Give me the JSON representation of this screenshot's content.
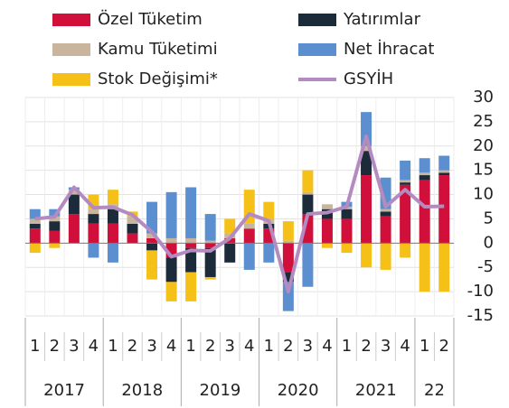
{
  "chart_data": {
    "type": "stacked_bar_line",
    "categories": [
      "1",
      "2",
      "3",
      "4",
      "1",
      "2",
      "3",
      "4",
      "1",
      "2",
      "3",
      "4",
      "1",
      "2",
      "3",
      "4",
      "1",
      "2",
      "3",
      "4",
      "1",
      "2"
    ],
    "category_groups": [
      "2017",
      "2018",
      "2019",
      "2020",
      "2021",
      "22"
    ],
    "series": [
      {
        "name": "Özel Tüketim",
        "color": "#d0103a",
        "values": [
          3,
          2.5,
          6,
          4,
          4,
          2,
          1,
          -3,
          -1,
          -1,
          1,
          3,
          3,
          -6,
          6,
          5,
          5,
          14,
          5.5,
          12,
          13,
          14
        ]
      },
      {
        "name": "Yatırımlar",
        "color": "#1c2b3a",
        "values": [
          1,
          2,
          4,
          2,
          3,
          2,
          -1.5,
          -5,
          -5,
          -6,
          -4,
          0,
          1,
          -2,
          4,
          2,
          2,
          5,
          1,
          0.5,
          1,
          0.5
        ]
      },
      {
        "name": "Kamu Tüketimi",
        "color": "#c9b59d",
        "values": [
          1,
          1,
          1,
          1,
          1,
          1.5,
          1,
          1,
          1,
          0.5,
          1,
          1,
          1,
          0.5,
          0.5,
          1,
          0.5,
          1,
          0.5,
          0.5,
          0.5,
          0.5
        ]
      },
      {
        "name": "Net İhracat",
        "color": "#5b8fd0",
        "values": [
          2,
          1.5,
          0.5,
          -3,
          -4,
          0,
          6.5,
          9.5,
          10.5,
          5.5,
          0,
          -5.5,
          -4,
          -6,
          -9,
          0,
          1,
          7,
          6.5,
          4,
          3,
          3
        ]
      },
      {
        "name": "Stok Değişimi*",
        "color": "#f5c018",
        "values": [
          -2,
          -1,
          0,
          3,
          3,
          1,
          -6,
          -4,
          -6,
          -0.5,
          3,
          7,
          3.5,
          4,
          4.5,
          -1,
          -2,
          -5,
          -5.5,
          -3,
          -10,
          -10
        ]
      },
      {
        "name": "GSYİH",
        "color": "#b48bc0",
        "type": "line",
        "values": [
          5,
          5.4,
          11.5,
          7.3,
          7.4,
          5.8,
          2.3,
          -2.8,
          -1.5,
          -1.6,
          1,
          6,
          4.6,
          -10,
          6,
          6.3,
          7.5,
          22,
          7.5,
          11,
          7.5,
          7.6
        ]
      }
    ],
    "ylim": [
      -15,
      30
    ],
    "yticks": [
      30,
      25,
      20,
      15,
      10,
      5,
      0,
      -5,
      -10,
      -15
    ],
    "grid": true
  }
}
